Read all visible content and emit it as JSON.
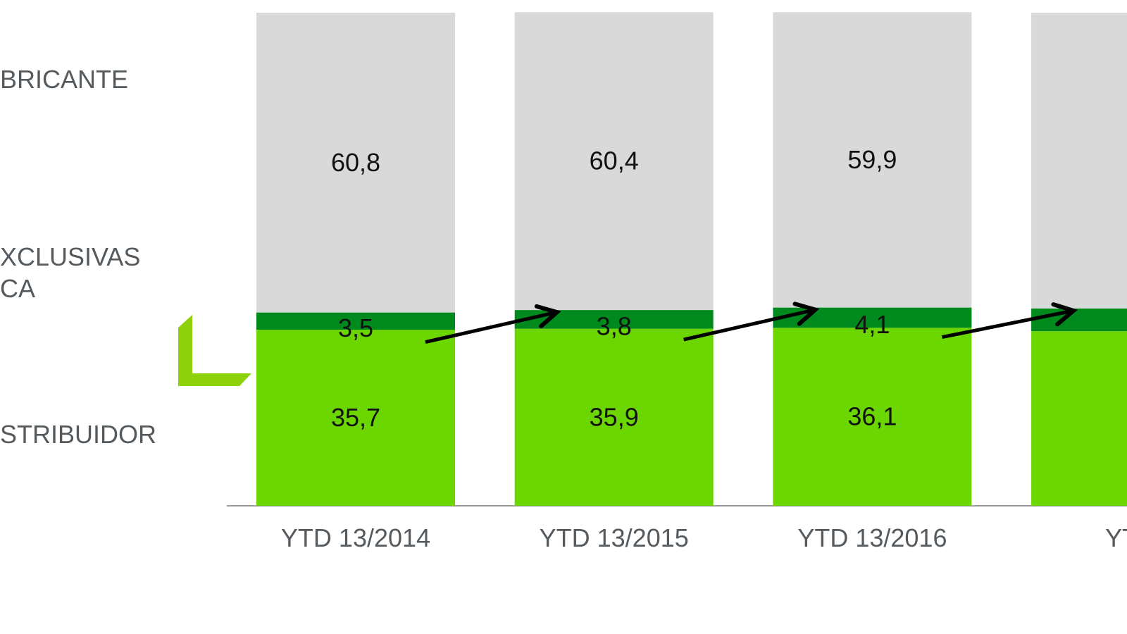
{
  "chart_data": {
    "type": "bar",
    "stacked": true,
    "title": "",
    "categories": [
      "YTD 13/2014",
      "YTD 13/2015",
      "YTD 13/2016",
      "YTD"
    ],
    "series": [
      {
        "name": "STRIBUIDOR",
        "color": "#6cd600",
        "values": [
          35.7,
          35.9,
          36.1,
          35.4
        ],
        "labels": [
          "35,7",
          "35,9",
          "36,1",
          null
        ]
      },
      {
        "name": "XCLUSIVAS CA",
        "color": "#008a1e",
        "values": [
          3.5,
          3.8,
          4.1,
          4.6
        ],
        "labels": [
          "3,5",
          "3,8",
          "4,1",
          null
        ]
      },
      {
        "name": "BRICANTE",
        "color": "#d9d9d9",
        "values": [
          60.8,
          60.4,
          59.9,
          60.0
        ],
        "labels": [
          "60,8",
          "60,4",
          "59,9",
          null
        ]
      }
    ],
    "ylim": [
      0,
      100
    ],
    "grid": false,
    "legend_placement": "left",
    "annotations": [
      "trend arrows between middle segments of consecutive bars"
    ]
  },
  "legend": {
    "item_top": "BRICANTE",
    "item_middle_line1": "XCLUSIVAS",
    "item_middle_line2": "CA",
    "item_bottom": "STRIBUIDOR"
  },
  "colors": {
    "accent_logo": "#8dd10a",
    "arrow": "#000000"
  }
}
